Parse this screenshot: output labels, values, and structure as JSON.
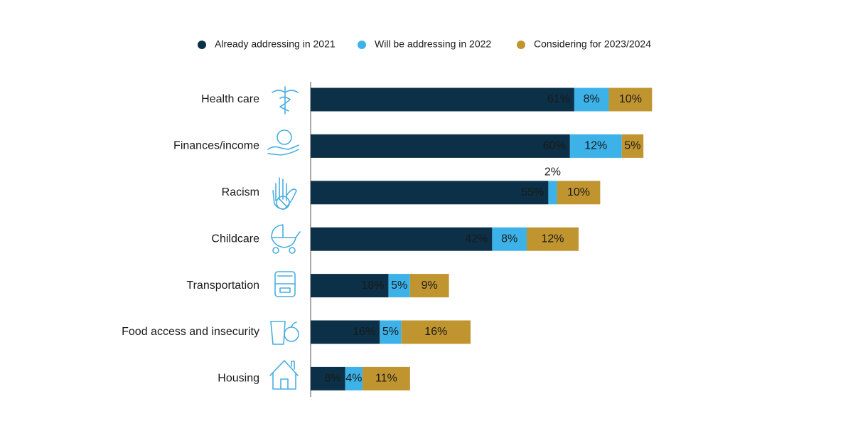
{
  "chart_data": {
    "type": "stacked-bar",
    "categories": [
      "Health care",
      "Finances/income",
      "Racism",
      "Childcare",
      "Transportation",
      "Food access and insecurity",
      "Housing"
    ],
    "series": [
      {
        "name": "Already addressing in 2021",
        "color": "#0b3047",
        "values": [
          61,
          60,
          55,
          42,
          18,
          16,
          8
        ],
        "value_labels": [
          "61%",
          "60%",
          "55%",
          "42%",
          "18%",
          "16%",
          "8%"
        ]
      },
      {
        "name": "Will be addressing in 2022",
        "color": "#3cb2e8",
        "values": [
          8,
          12,
          2,
          8,
          5,
          5,
          4
        ],
        "value_labels": [
          "8%",
          "12%",
          "2%",
          "8%",
          "5%",
          "5%",
          "4%"
        ]
      },
      {
        "name": "Considering for 2023/2024",
        "color": "#c0952f",
        "values": [
          10,
          5,
          10,
          12,
          9,
          16,
          11
        ],
        "value_labels": [
          "10%",
          "5%",
          "10%",
          "12%",
          "9%",
          "16%",
          "11%"
        ]
      }
    ],
    "legend": "top"
  }
}
